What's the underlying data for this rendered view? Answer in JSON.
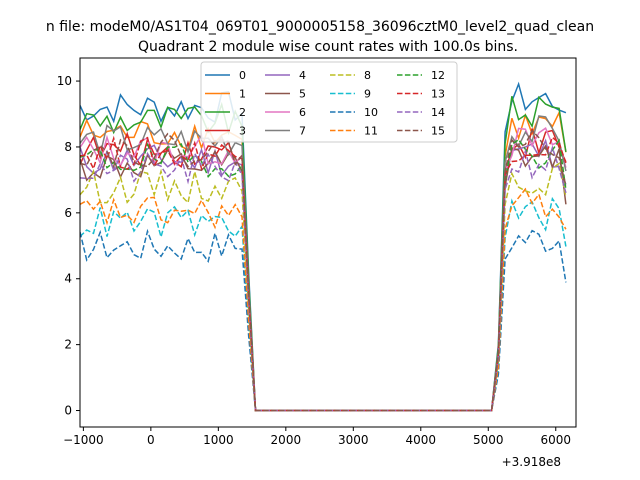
{
  "chart_data": {
    "type": "line",
    "suptitle": "n file: modeM0/AS1T04_069T01_9000005158_36096cztM0_level2_quad_clean",
    "title": "Quadrant 2 module wise count rates with 100.0s bins.",
    "xlabel": "",
    "ylabel": "",
    "x_offset_label": "+3.918e8",
    "xlim": [
      -1050,
      6300
    ],
    "ylim": [
      -0.5,
      10.7
    ],
    "xticks": [
      -1000,
      0,
      1000,
      2000,
      3000,
      4000,
      5000,
      6000
    ],
    "yticks": [
      0,
      2,
      4,
      6,
      8,
      10
    ],
    "xtick_labels": [
      "−1000",
      "0",
      "1000",
      "2000",
      "3000",
      "4000",
      "5000",
      "6000"
    ],
    "ytick_labels": [
      "0",
      "2",
      "4",
      "6",
      "8",
      "10"
    ],
    "x": [
      -1050,
      -950,
      -850,
      -750,
      -650,
      -550,
      -450,
      -350,
      -250,
      -150,
      -50,
      50,
      150,
      250,
      350,
      450,
      550,
      650,
      750,
      850,
      950,
      1050,
      1150,
      1250,
      1350,
      1450,
      1550,
      1650,
      1750,
      1850,
      1950,
      2050,
      2150,
      2250,
      2350,
      2450,
      2550,
      2650,
      2750,
      2850,
      2950,
      3050,
      3150,
      3250,
      3350,
      3450,
      3550,
      3650,
      3750,
      3850,
      3950,
      4050,
      4150,
      4250,
      4350,
      4450,
      4550,
      4650,
      4750,
      4850,
      4950,
      5050,
      5150,
      5250,
      5350,
      5450,
      5550,
      5650,
      5750,
      5850,
      5950,
      6050,
      6150
    ],
    "legend": {
      "placement": "top-center",
      "columns": 4
    },
    "series": [
      {
        "name": "0",
        "color": "#1f77b4",
        "dash": "solid",
        "level": 9.2
      },
      {
        "name": "1",
        "color": "#ff7f0e",
        "dash": "solid",
        "level": 8.4
      },
      {
        "name": "2",
        "color": "#2ca02c",
        "dash": "solid",
        "level": 8.8
      },
      {
        "name": "3",
        "color": "#d62728",
        "dash": "solid",
        "level": 7.9
      },
      {
        "name": "4",
        "color": "#9467bd",
        "dash": "solid",
        "level": 7.6
      },
      {
        "name": "5",
        "color": "#8c564b",
        "dash": "solid",
        "level": 7.4
      },
      {
        "name": "6",
        "color": "#e377c2",
        "dash": "solid",
        "level": 7.9
      },
      {
        "name": "7",
        "color": "#7f7f7f",
        "dash": "solid",
        "level": 8.2
      },
      {
        "name": "8",
        "color": "#bcbd22",
        "dash": "dashed",
        "level": 6.8
      },
      {
        "name": "9",
        "color": "#17becf",
        "dash": "dashed",
        "level": 5.7
      },
      {
        "name": "10",
        "color": "#1f77b4",
        "dash": "dashed",
        "level": 5.0
      },
      {
        "name": "11",
        "color": "#ff7f0e",
        "dash": "dashed",
        "level": 6.0
      },
      {
        "name": "12",
        "color": "#2ca02c",
        "dash": "dashed",
        "level": 7.6
      },
      {
        "name": "13",
        "color": "#d62728",
        "dash": "dashed",
        "level": 7.8
      },
      {
        "name": "14",
        "color": "#9467bd",
        "dash": "dashed",
        "level": 7.3
      },
      {
        "name": "15",
        "color": "#8c564b",
        "dash": "dashed",
        "level": 7.9
      }
    ]
  }
}
